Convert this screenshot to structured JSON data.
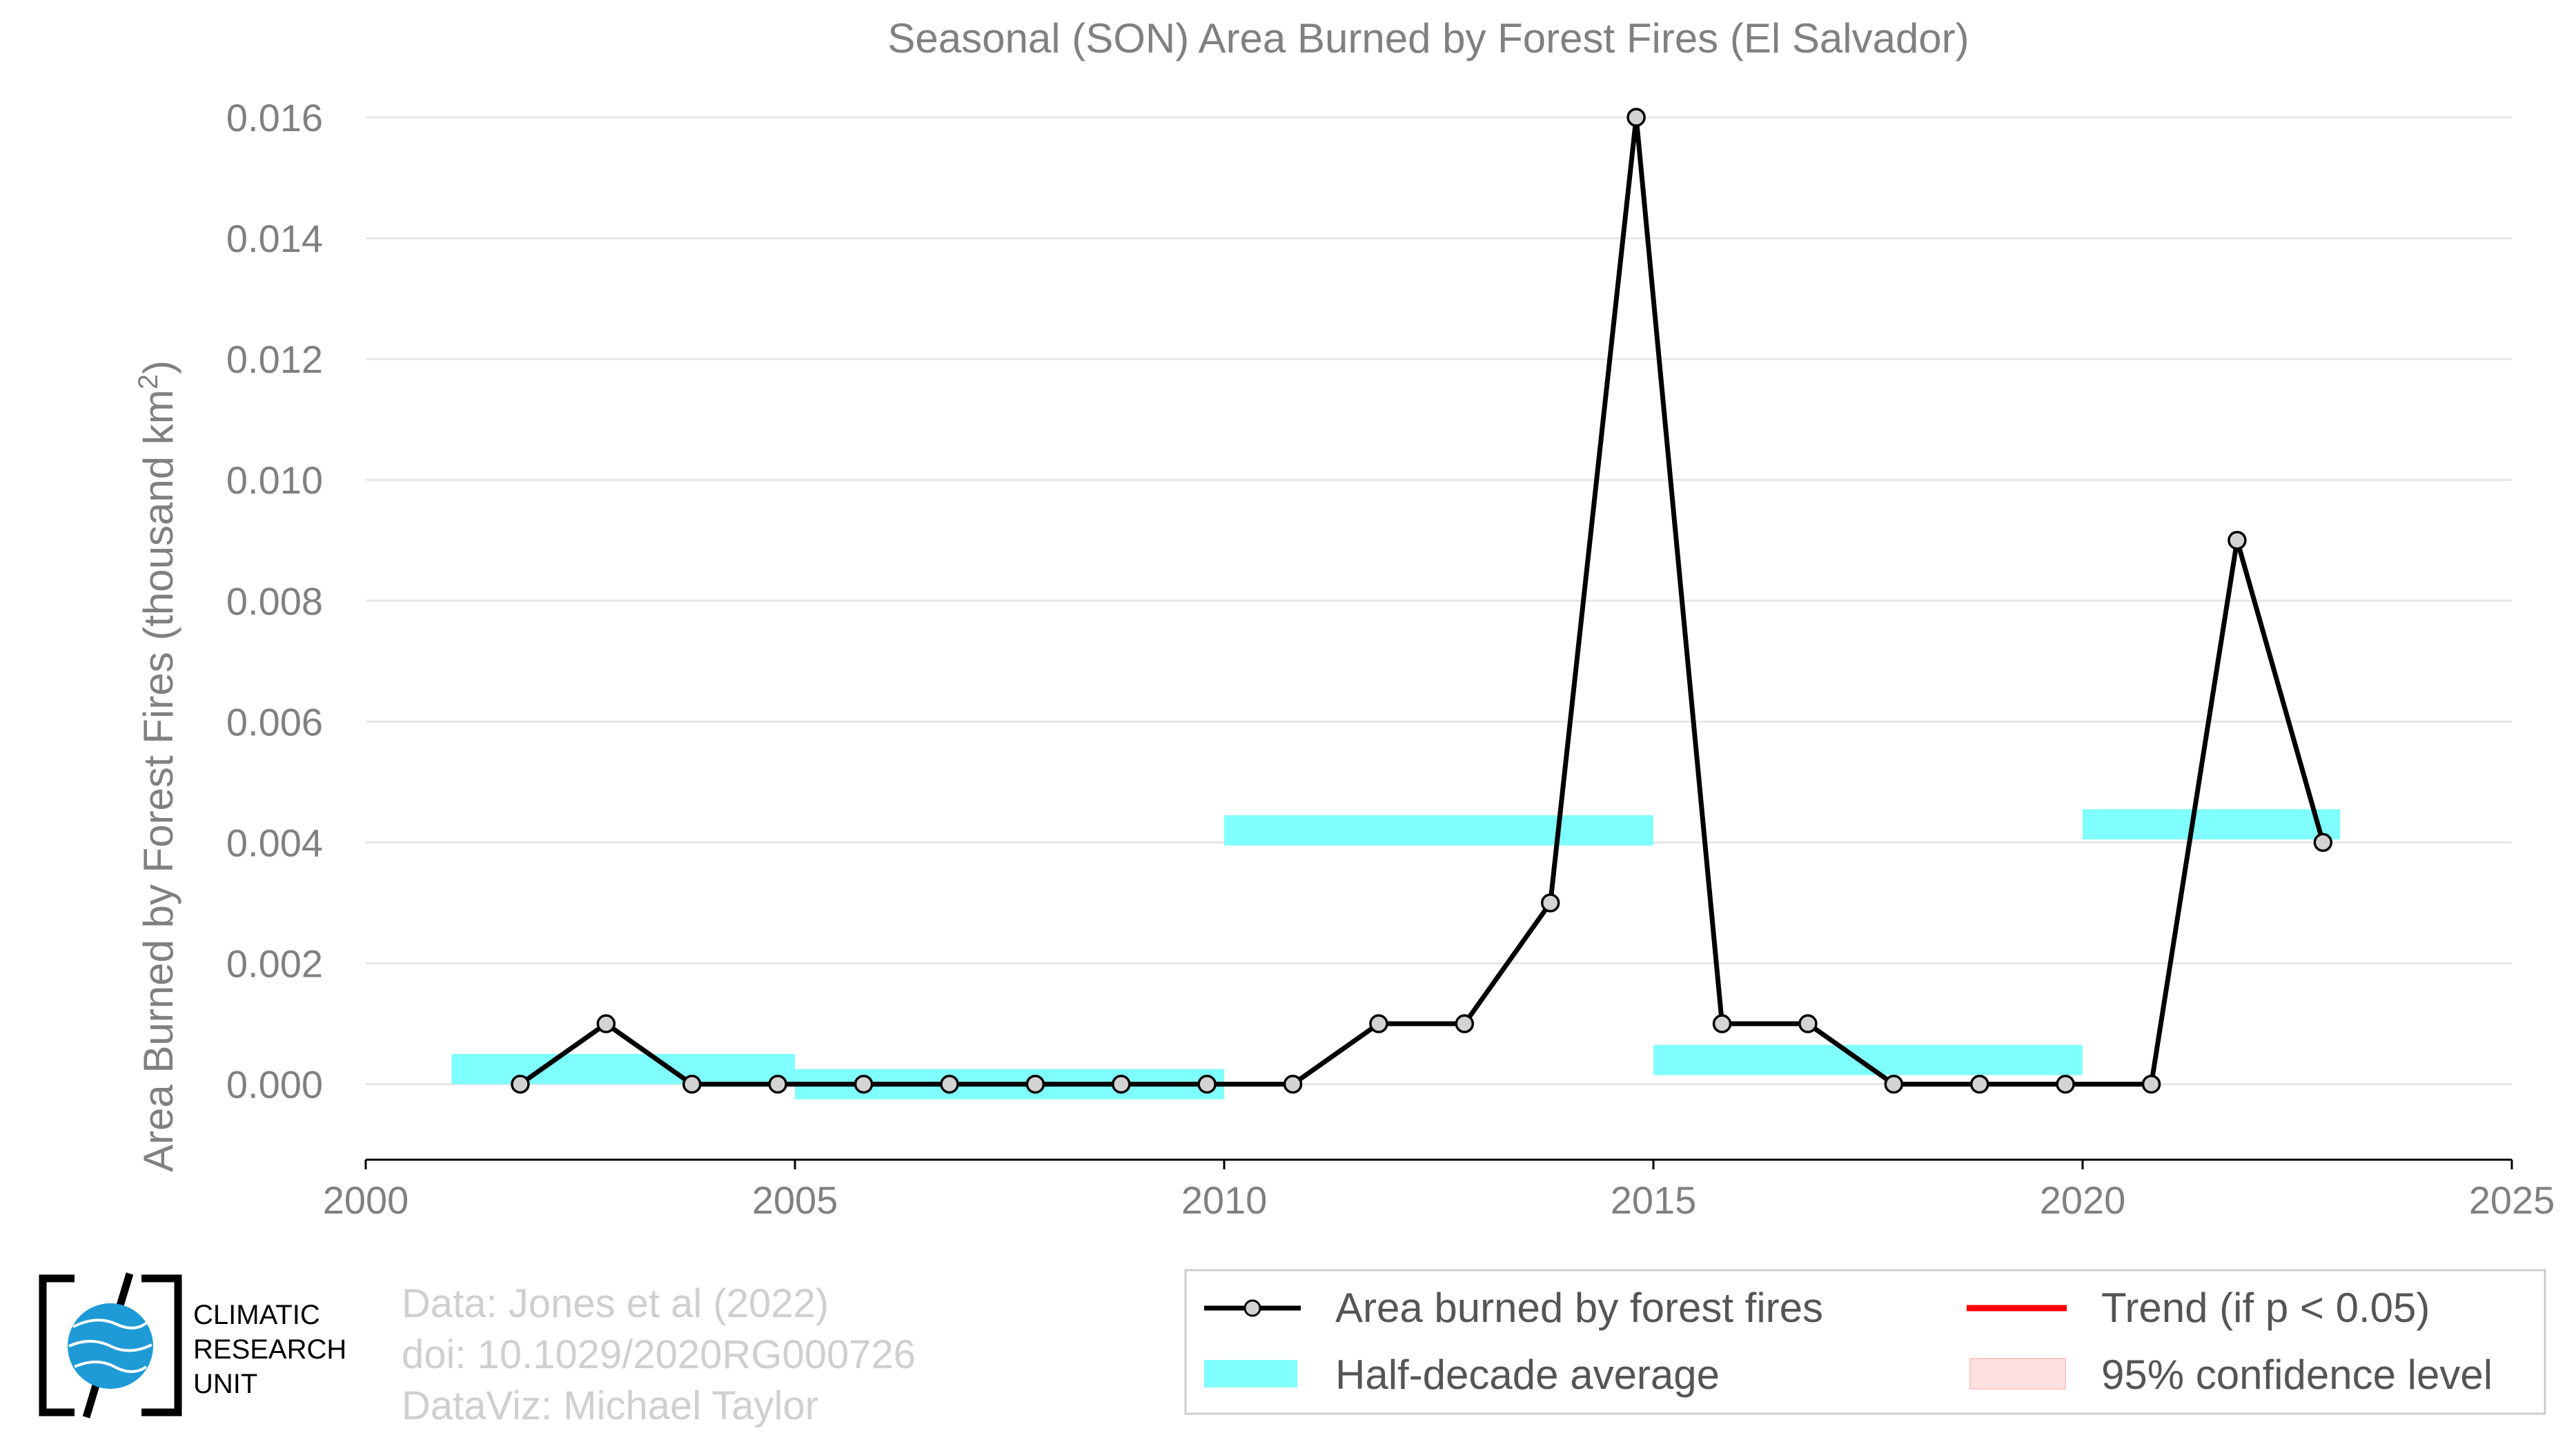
{
  "chart_data": {
    "type": "line",
    "title": "Seasonal (SON) Area Burned by Forest Fires (El Salvador)",
    "ylabel": "Area Burned by Forest Fires (thousand km",
    "ylabel_sup": "2",
    "ylabel_end": ")",
    "xlim": [
      2000,
      2025
    ],
    "ylim": [
      -0.00125,
      0.016
    ],
    "x_ticks": [
      2000,
      2005,
      2010,
      2015,
      2020,
      2025
    ],
    "y_ticks": [
      0.0,
      0.002,
      0.004,
      0.006,
      0.008,
      0.01,
      0.012,
      0.014,
      0.016
    ],
    "y_tick_labels": [
      "0.000",
      "0.002",
      "0.004",
      "0.006",
      "0.008",
      "0.010",
      "0.012",
      "0.014",
      "0.016"
    ],
    "grid": true,
    "series": [
      {
        "name": "Area burned by forest fires",
        "color": "#000000",
        "marker_color": "#d3d3d3",
        "x": [
          2001.8,
          2002.8,
          2003.8,
          2004.8,
          2005.8,
          2006.8,
          2007.8,
          2008.8,
          2009.8,
          2010.8,
          2011.8,
          2012.8,
          2013.8,
          2014.8,
          2015.8,
          2016.8,
          2017.8,
          2018.8,
          2019.8,
          2020.8,
          2021.8,
          2022.8
        ],
        "y": [
          0.0,
          0.001,
          0.0,
          0.0,
          0.0,
          0.0,
          0.0,
          0.0,
          0.0,
          0.0,
          0.001,
          0.001,
          0.003,
          0.016,
          0.001,
          0.001,
          0.0,
          0.0,
          0.0,
          0.0,
          0.009,
          0.004
        ]
      }
    ],
    "half_decade_average": {
      "name": "Half-decade average",
      "color": "#80ffff",
      "segments": [
        {
          "x0": 2001,
          "x1": 2005,
          "y": 0.00025
        },
        {
          "x0": 2005,
          "x1": 2010,
          "y": 0.0
        },
        {
          "x0": 2010,
          "x1": 2015,
          "y": 0.0042
        },
        {
          "x0": 2015,
          "x1": 2020,
          "y": 0.0004
        },
        {
          "x0": 2020,
          "x1": 2023,
          "y": 0.0043
        }
      ]
    },
    "trend": {
      "name": "Trend (if p < 0.05)",
      "color": "#ff0000"
    },
    "confidence": {
      "name": "95% confidence level",
      "color": "#ffe0e0"
    },
    "legend_position": "bottom-right"
  },
  "credits": {
    "line1": "Data: Jones et al (2022)",
    "line2": "doi: 10.1029/2020RG000726",
    "line3": "DataViz: Michael Taylor"
  },
  "logo": {
    "line1": "CLIMATIC",
    "line2": "RESEARCH",
    "line3": "UNIT"
  }
}
